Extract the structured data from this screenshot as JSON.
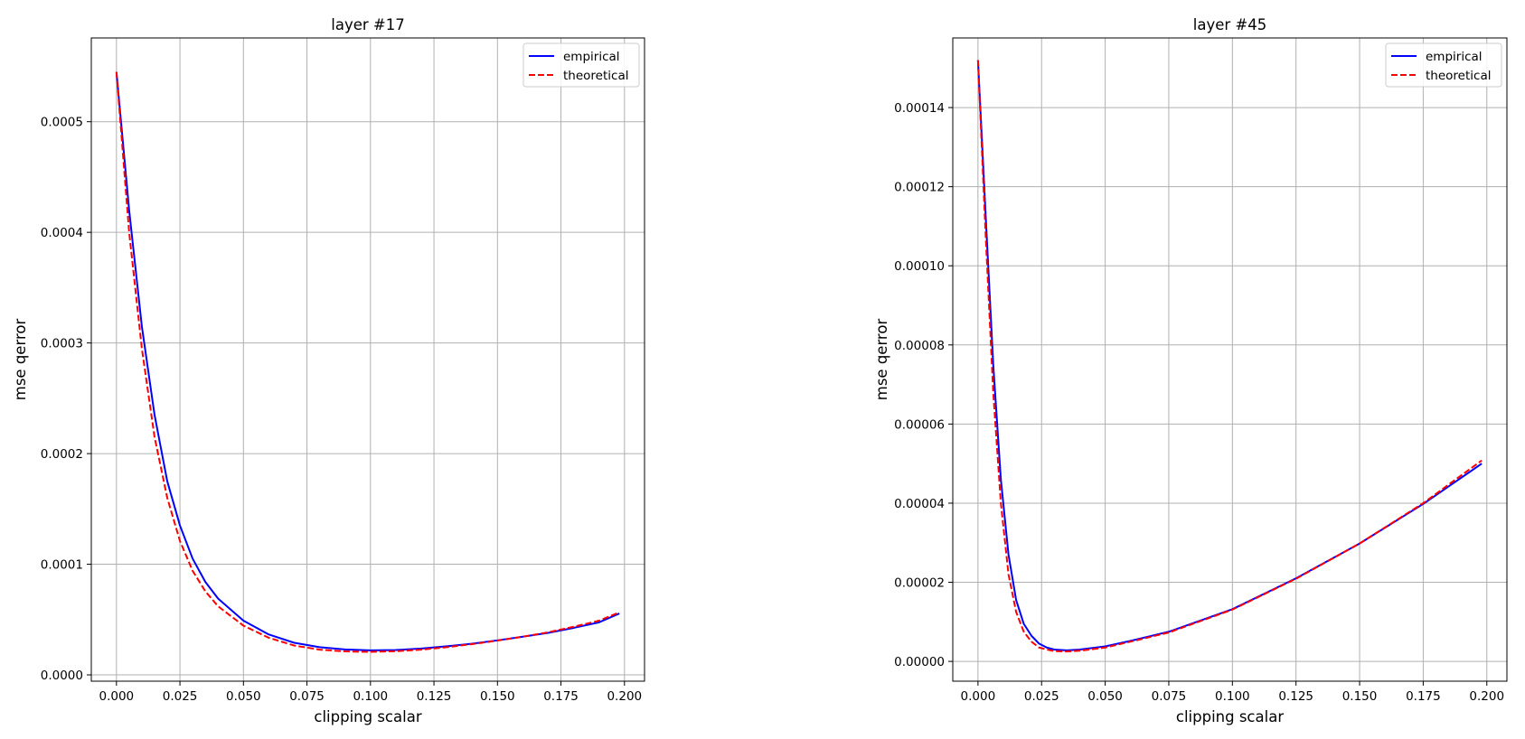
{
  "chart_data": [
    {
      "type": "line",
      "title": "layer #17",
      "xlabel": "clipping scalar",
      "ylabel": "mse qerror",
      "xlim": [
        -0.0099,
        0.2079
      ],
      "ylim": [
        -5.7e-06,
        0.0005757
      ],
      "xticks": [
        0.0,
        0.025,
        0.05,
        0.075,
        0.1,
        0.125,
        0.15,
        0.175,
        0.2
      ],
      "xtick_labels": [
        "0.000",
        "0.025",
        "0.050",
        "0.075",
        "0.100",
        "0.125",
        "0.150",
        "0.175",
        "0.200"
      ],
      "yticks": [
        0.0,
        0.0001,
        0.0002,
        0.0003,
        0.0004,
        0.0005
      ],
      "ytick_labels": [
        "0.0000",
        "0.0001",
        "0.0002",
        "0.0003",
        "0.0004",
        "0.0005"
      ],
      "grid": true,
      "legend_position": "top-right",
      "series": [
        {
          "name": "empirical",
          "color": "#0000ff",
          "style": "solid",
          "x": [
            0.0,
            0.005,
            0.01,
            0.015,
            0.02,
            0.025,
            0.03,
            0.035,
            0.04,
            0.05,
            0.06,
            0.07,
            0.08,
            0.09,
            0.1,
            0.11,
            0.12,
            0.13,
            0.14,
            0.15,
            0.16,
            0.17,
            0.18,
            0.19,
            0.198
          ],
          "y": [
            0.000545,
            0.00042,
            0.000315,
            0.000235,
            0.000175,
            0.000135,
            0.000105,
            8.4e-05,
            6.9e-05,
            4.9e-05,
            3.65e-05,
            2.9e-05,
            2.5e-05,
            2.3e-05,
            2.22e-05,
            2.25e-05,
            2.38e-05,
            2.58e-05,
            2.82e-05,
            3.12e-05,
            3.45e-05,
            3.8e-05,
            4.25e-05,
            4.75e-05,
            5.55e-05
          ]
        },
        {
          "name": "theoretical",
          "color": "#ff0000",
          "style": "dashed",
          "x": [
            0.0,
            0.005,
            0.01,
            0.015,
            0.02,
            0.025,
            0.03,
            0.035,
            0.04,
            0.05,
            0.06,
            0.07,
            0.08,
            0.09,
            0.1,
            0.11,
            0.12,
            0.13,
            0.14,
            0.15,
            0.16,
            0.17,
            0.18,
            0.19,
            0.198
          ],
          "y": [
            0.000545,
            0.0004,
            0.000295,
            0.000215,
            0.00016,
            0.000121,
            9.4e-05,
            7.55e-05,
            6.2e-05,
            4.45e-05,
            3.35e-05,
            2.65e-05,
            2.28e-05,
            2.12e-05,
            2.08e-05,
            2.14e-05,
            2.28e-05,
            2.5e-05,
            2.78e-05,
            3.1e-05,
            3.45e-05,
            3.85e-05,
            4.35e-05,
            4.9e-05,
            5.65e-05
          ]
        }
      ]
    },
    {
      "type": "line",
      "title": "layer #45",
      "xlabel": "clipping scalar",
      "ylabel": "mse qerror",
      "xlim": [
        -0.0099,
        0.2079
      ],
      "ylim": [
        -5e-06,
        0.0001576
      ],
      "xticks": [
        0.0,
        0.025,
        0.05,
        0.075,
        0.1,
        0.125,
        0.15,
        0.175,
        0.2
      ],
      "xtick_labels": [
        "0.000",
        "0.025",
        "0.050",
        "0.075",
        "0.100",
        "0.125",
        "0.150",
        "0.175",
        "0.200"
      ],
      "yticks": [
        0.0,
        2e-05,
        4e-05,
        6e-05,
        8e-05,
        0.0001,
        0.00012,
        0.00014
      ],
      "ytick_labels": [
        "0.00000",
        "0.00002",
        "0.00004",
        "0.00006",
        "0.00008",
        "0.00010",
        "0.00012",
        "0.00014"
      ],
      "grid": true,
      "legend_position": "top-right",
      "series": [
        {
          "name": "empirical",
          "color": "#0000ff",
          "style": "solid",
          "x": [
            0.0,
            0.003,
            0.006,
            0.009,
            0.012,
            0.015,
            0.018,
            0.021,
            0.024,
            0.027,
            0.03,
            0.035,
            0.04,
            0.05,
            0.06,
            0.075,
            0.1,
            0.125,
            0.15,
            0.175,
            0.198
          ],
          "y": [
            0.000152,
            0.000113,
            7.5e-05,
            4.6e-05,
            2.7e-05,
            1.55e-05,
            9.5e-06,
            6.5e-06,
            4.5e-06,
            3.5e-06,
            3e-06,
            2.8e-06,
            3e-06,
            3.8e-06,
            5.2e-06,
            7.5e-06,
            1.32e-05,
            2.1e-05,
            2.98e-05,
            3.98e-05,
            5e-05
          ]
        },
        {
          "name": "theoretical",
          "color": "#ff0000",
          "style": "dashed",
          "x": [
            0.0,
            0.003,
            0.006,
            0.009,
            0.012,
            0.015,
            0.018,
            0.021,
            0.024,
            0.027,
            0.03,
            0.035,
            0.04,
            0.05,
            0.06,
            0.075,
            0.1,
            0.125,
            0.15,
            0.175,
            0.198
          ],
          "y": [
            0.000152,
            0.000108,
            6.8e-05,
            4e-05,
            2.2e-05,
            1.25e-05,
            7.5e-06,
            5e-06,
            3.5e-06,
            3e-06,
            2.6e-06,
            2.5e-06,
            2.7e-06,
            3.5e-06,
            5e-06,
            7.3e-06,
            1.31e-05,
            2.09e-05,
            2.98e-05,
            4e-05,
            5.08e-05
          ]
        }
      ]
    }
  ]
}
